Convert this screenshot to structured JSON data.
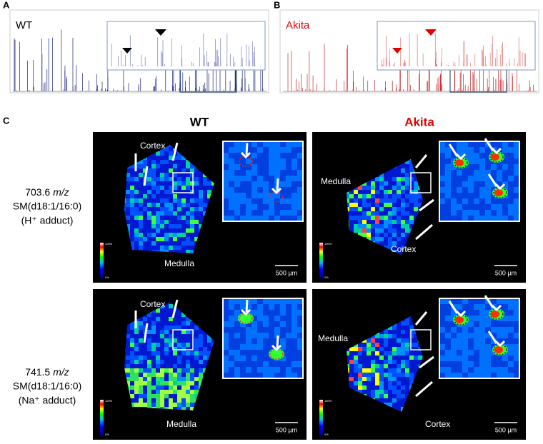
{
  "panel_a": {
    "label": "A",
    "sample": "WT"
  },
  "panel_b": {
    "label": "B",
    "sample": "Akita"
  },
  "panel_c": {
    "label": "C",
    "columns": [
      "WT",
      "Akita"
    ],
    "rows": [
      {
        "mz": "703.6",
        "unit": "m/z",
        "lipid": "SM(d18:1/16:0)",
        "adduct": "(H⁺ adduct)",
        "images": [
          {
            "regions": [
              "Cortex",
              "Medulla"
            ],
            "scale_bar": "500 µm"
          },
          {
            "regions": [
              "Medulla",
              "Cortex"
            ],
            "scale_bar": "500 µm"
          }
        ]
      },
      {
        "mz": "741.5",
        "unit": "m/z",
        "lipid": "SM(d18:1/16:0)",
        "adduct": "(Na⁺ adduct)",
        "images": [
          {
            "regions": [
              "Cortex",
              "Medulla"
            ],
            "scale_bar": "500 µm"
          },
          {
            "regions": [
              "Medulla",
              "Cortex"
            ],
            "scale_bar": "500 µm"
          }
        ]
      }
    ],
    "colorbar": {
      "max": "100%",
      "min": "0%"
    }
  }
}
